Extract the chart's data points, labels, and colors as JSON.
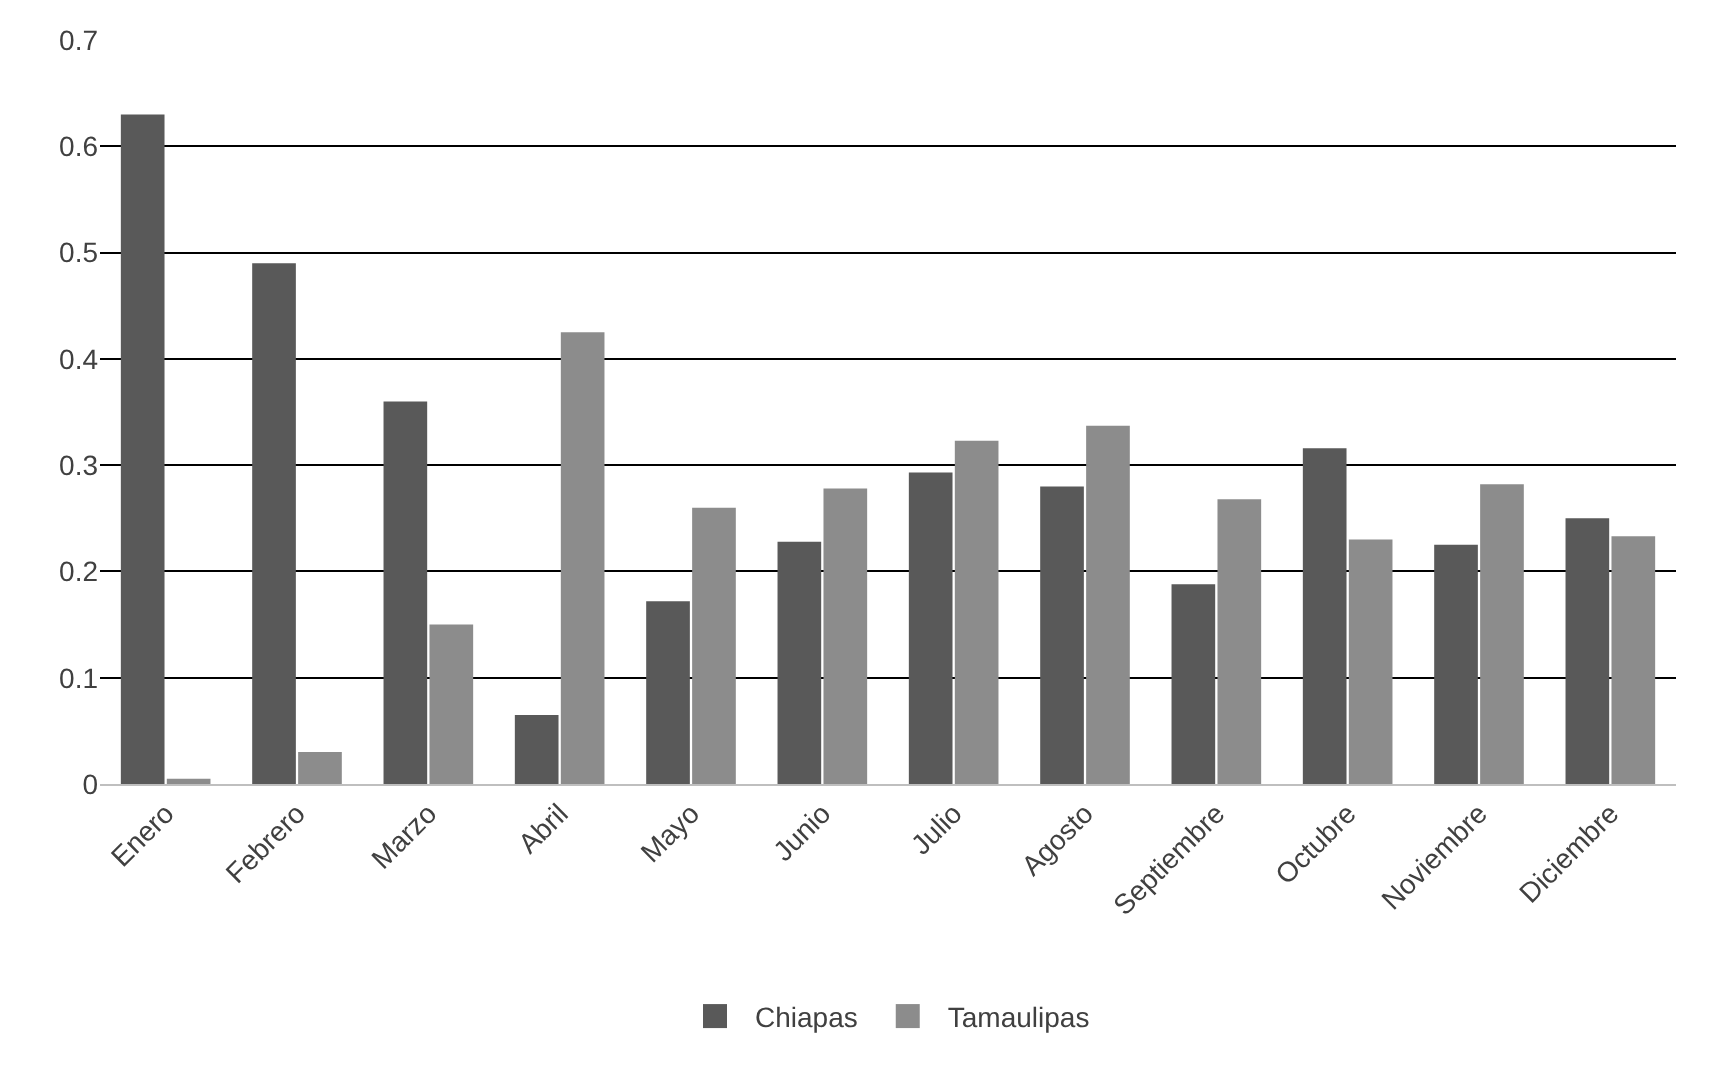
{
  "chart_data": {
    "type": "bar",
    "categories": [
      "Enero",
      "Febrero",
      "Marzo",
      "Abril",
      "Mayo",
      "Junio",
      "Julio",
      "Agosto",
      "Septiembre",
      "Octubre",
      "Noviembre",
      "Diciembre"
    ],
    "series": [
      {
        "name": "Chiapas",
        "color": "#595959",
        "values": [
          0.63,
          0.49,
          0.36,
          0.065,
          0.172,
          0.228,
          0.293,
          0.28,
          0.188,
          0.316,
          0.225,
          0.25
        ]
      },
      {
        "name": "Tamaulipas",
        "color": "#8c8c8c",
        "values": [
          0.005,
          0.03,
          0.15,
          0.425,
          0.26,
          0.278,
          0.323,
          0.337,
          0.268,
          0.23,
          0.282,
          0.233
        ]
      }
    ],
    "ylim": [
      0,
      0.7
    ],
    "yticks": [
      {
        "value": 0,
        "label": "0"
      },
      0.1,
      0.2,
      0.3,
      0.4,
      0.5,
      0.6,
      0.7
    ],
    "grid": "y",
    "legend": "bottom"
  }
}
